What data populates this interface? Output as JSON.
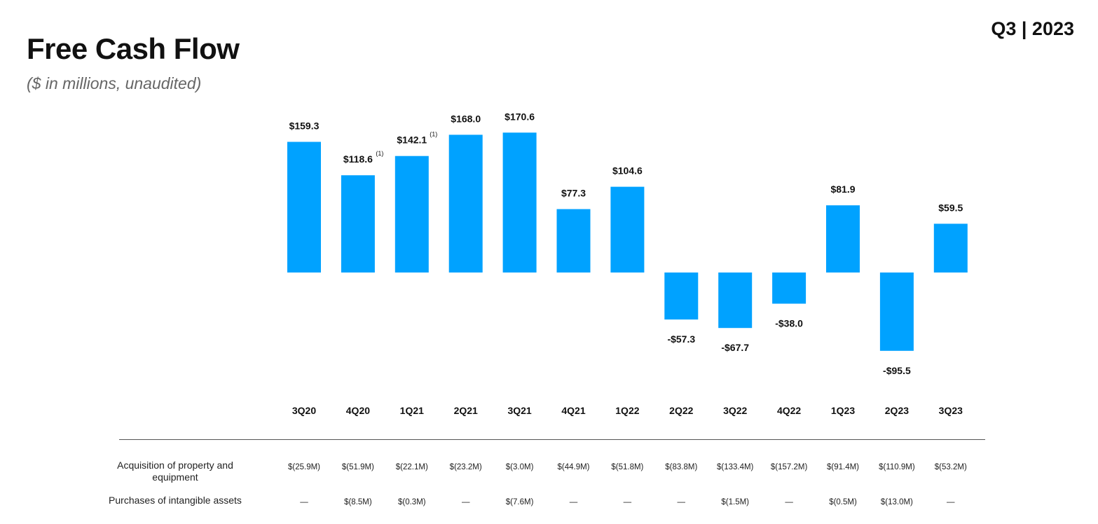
{
  "header": {
    "title": "Free Cash Flow",
    "subtitle": "($ in millions, unaudited)",
    "period": "Q3 | 2023"
  },
  "chart_data": {
    "type": "bar",
    "title": "Free Cash Flow",
    "subtitle": "($ in millions, unaudited)",
    "categories": [
      "3Q20",
      "4Q20",
      "1Q21",
      "2Q21",
      "3Q21",
      "4Q21",
      "1Q22",
      "2Q22",
      "3Q22",
      "4Q22",
      "1Q23",
      "2Q23",
      "3Q23"
    ],
    "values": [
      159.3,
      118.6,
      142.1,
      168.0,
      170.6,
      77.3,
      104.6,
      -57.3,
      -67.7,
      -38.0,
      81.9,
      -95.5,
      59.5
    ],
    "labels": [
      "$159.3",
      "$118.6",
      "$142.1",
      "$168.0",
      "$170.6",
      "$77.3",
      "$104.6",
      "-$57.3",
      "-$67.7",
      "-$38.0",
      "$81.9",
      "-$95.5",
      "$59.5"
    ],
    "footnotes": [
      "",
      "(1)",
      "(1)",
      "",
      "",
      "",
      "",
      "",
      "",
      "",
      "",
      "",
      ""
    ],
    "ylim": [
      -100,
      175
    ],
    "bar_color": "#00a2ff",
    "grid": false,
    "legend": "none"
  },
  "table": {
    "rows": [
      {
        "label": "Acquisition of property and equipment",
        "values": [
          "$(25.9M)",
          "$(51.9M)",
          "$(22.1M)",
          "$(23.2M)",
          "$(3.0M)",
          "$(44.9M)",
          "$(51.8M)",
          "$(83.8M)",
          "$(133.4M)",
          "$(157.2M)",
          "$(91.4M)",
          "$(110.9M)",
          "$(53.2M)"
        ]
      },
      {
        "label": "Purchases of intangible assets",
        "values": [
          "—",
          "$(8.5M)",
          "$(0.3M)",
          "—",
          "$(7.6M)",
          "—",
          "—",
          "—",
          "$(1.5M)",
          "—",
          "$(0.5M)",
          "$(13.0M)",
          "—"
        ]
      }
    ]
  }
}
